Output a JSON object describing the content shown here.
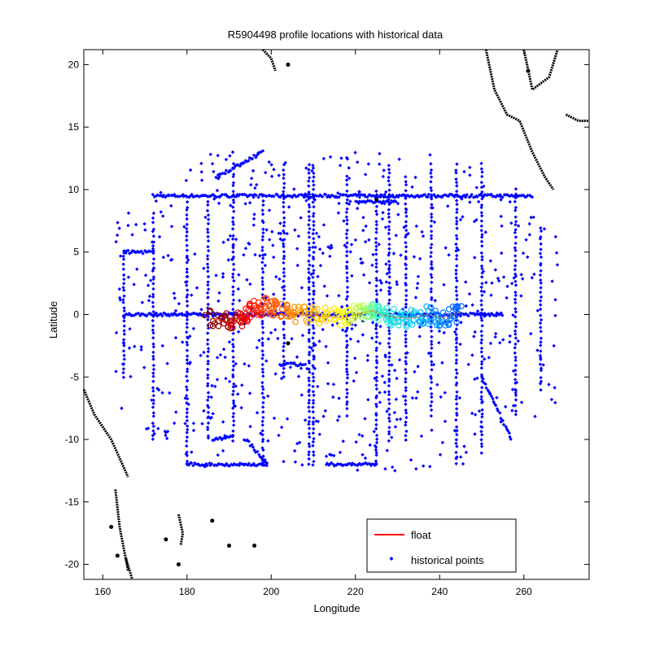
{
  "chart_data": {
    "type": "scatter",
    "title": "R5904498 profile locations with historical data",
    "xlabel": "Longitude",
    "ylabel": "Latitude",
    "xlim": [
      155.5,
      275.5
    ],
    "ylim": [
      -21.2,
      21.2
    ],
    "xticks": [
      160,
      180,
      200,
      220,
      240,
      260
    ],
    "yticks": [
      -20,
      -15,
      -10,
      -5,
      0,
      5,
      10,
      15,
      20
    ],
    "grid": false,
    "legend": {
      "placement": "bottom-right",
      "entries": [
        {
          "label": "float",
          "color": "#ff0000",
          "marker": "line"
        },
        {
          "label": "historical points",
          "color": "#0000ff",
          "marker": "diamond"
        }
      ]
    },
    "colors": {
      "historical": "#0000ff",
      "coastline": "#000000",
      "float_gradient": [
        "#800000",
        "#ff0000",
        "#ff8000",
        "#ffff00",
        "#40ffc0",
        "#00c0ff",
        "#0060ff"
      ]
    },
    "series": [
      {
        "name": "historical points",
        "kind": "points",
        "color": "#0000ff",
        "lines": [
          {
            "from": [
              172,
              9.5
            ],
            "to": [
              262,
              9.5
            ]
          },
          {
            "from": [
              165,
              0
            ],
            "to": [
              255,
              0
            ]
          },
          {
            "from": [
              165,
              5
            ],
            "to": [
              172,
              5
            ]
          },
          {
            "from": [
              165,
              5
            ],
            "to": [
              165,
              -5
            ]
          },
          {
            "from": [
              180,
              9
            ],
            "to": [
              180,
              -12
            ]
          },
          {
            "from": [
              191,
              12
            ],
            "to": [
              191,
              -10
            ]
          },
          {
            "from": [
              198,
              9
            ],
            "to": [
              198,
              -12
            ]
          },
          {
            "from": [
              209,
              12
            ],
            "to": [
              209,
              -12
            ]
          },
          {
            "from": [
              210,
              12
            ],
            "to": [
              210,
              -12
            ]
          },
          {
            "from": [
              225,
              10
            ],
            "to": [
              225,
              -12
            ]
          },
          {
            "from": [
              250,
              12
            ],
            "to": [
              250,
              -11
            ]
          },
          {
            "from": [
              186,
              -10
            ],
            "to": [
              191,
              -9.8
            ]
          },
          {
            "from": [
              194,
              -10
            ],
            "to": [
              199,
              -12
            ]
          },
          {
            "from": [
              180,
              -12
            ],
            "to": [
              199,
              -12
            ]
          },
          {
            "from": [
              213,
              -12
            ],
            "to": [
              225,
              -12
            ]
          },
          {
            "from": [
              250,
              -5
            ],
            "to": [
              257,
              -10
            ]
          },
          {
            "from": [
              202,
              -4
            ],
            "to": [
              208,
              -4
            ]
          },
          {
            "from": [
              220,
              9
            ],
            "to": [
              230,
              9
            ]
          },
          {
            "from": [
              232,
              11
            ],
            "to": [
              232,
              -10
            ]
          },
          {
            "from": [
              238,
              12
            ],
            "to": [
              238,
              -8
            ]
          },
          {
            "from": [
              244,
              12
            ],
            "to": [
              244,
              -12
            ]
          },
          {
            "from": [
              218,
              11
            ],
            "to": [
              218,
              -8
            ]
          },
          {
            "from": [
              228,
              12
            ],
            "to": [
              228,
              -10
            ]
          },
          {
            "from": [
              203,
              12
            ],
            "to": [
              203,
              -5
            ]
          },
          {
            "from": [
              185,
              9
            ],
            "to": [
              185,
              -10
            ]
          },
          {
            "from": [
              172,
              8
            ],
            "to": [
              172,
              -10
            ]
          },
          {
            "from": [
              258,
              10
            ],
            "to": [
              258,
              -8
            ]
          },
          {
            "from": [
              264,
              7
            ],
            "to": [
              264,
              -6
            ]
          },
          {
            "from": [
              187,
              11
            ],
            "to": [
              198,
              13
            ]
          }
        ],
        "scatter_region": {
          "x": [
            163,
            268
          ],
          "y": [
            -12.5,
            13
          ],
          "count": 700
        }
      },
      {
        "name": "float",
        "kind": "trajectory",
        "points": [
          {
            "lon": 185,
            "lat": -0.3
          },
          {
            "lon": 190,
            "lat": -0.6
          },
          {
            "lon": 193,
            "lat": -0.2
          },
          {
            "lon": 196,
            "lat": 0.4
          },
          {
            "lon": 199,
            "lat": 0.7
          },
          {
            "lon": 203,
            "lat": 0.2
          },
          {
            "lon": 207,
            "lat": 0.0
          },
          {
            "lon": 212,
            "lat": -0.1
          },
          {
            "lon": 217,
            "lat": -0.3
          },
          {
            "lon": 221,
            "lat": 0.1
          },
          {
            "lon": 224,
            "lat": 0.3
          },
          {
            "lon": 226,
            "lat": 0.0
          },
          {
            "lon": 229,
            "lat": -0.2
          },
          {
            "lon": 233,
            "lat": -0.3
          },
          {
            "lon": 237,
            "lat": 0.0
          },
          {
            "lon": 241,
            "lat": -0.3
          },
          {
            "lon": 245,
            "lat": 0.2
          }
        ]
      }
    ],
    "coastlines": [
      [
        [
          155.5,
          -6
        ],
        [
          158,
          -8
        ],
        [
          162,
          -10
        ],
        [
          166,
          -13
        ]
      ],
      [
        [
          163,
          -14
        ],
        [
          164,
          -17
        ],
        [
          166,
          -20.5
        ]
      ],
      [
        [
          178,
          -16
        ],
        [
          179,
          -17.5
        ],
        [
          178.5,
          -18.5
        ]
      ],
      [
        [
          165.5,
          -19.5
        ],
        [
          167,
          -21.2
        ]
      ],
      [
        [
          251,
          21.2
        ],
        [
          253,
          18
        ],
        [
          256,
          16
        ],
        [
          259,
          15.5
        ],
        [
          262,
          13
        ],
        [
          265,
          11
        ],
        [
          267,
          10
        ]
      ],
      [
        [
          260,
          21.2
        ],
        [
          262,
          18
        ],
        [
          266,
          19
        ],
        [
          268,
          21.2
        ]
      ],
      [
        [
          270,
          16
        ],
        [
          273,
          15.5
        ],
        [
          275.5,
          15.5
        ]
      ],
      [
        [
          198,
          21.2
        ],
        [
          200,
          20.5
        ],
        [
          201,
          19.5
        ]
      ]
    ],
    "islands": [
      [
        204,
        -2.3
      ],
      [
        207.4,
        0.2
      ],
      [
        225,
        9.2
      ],
      [
        261,
        19.5
      ],
      [
        186,
        -16.5
      ],
      [
        196,
        -18.5
      ],
      [
        204,
        20
      ],
      [
        178,
        -20
      ],
      [
        162,
        -17
      ],
      [
        163.5,
        -19.3
      ],
      [
        190,
        -18.5
      ],
      [
        175,
        -18
      ]
    ]
  }
}
